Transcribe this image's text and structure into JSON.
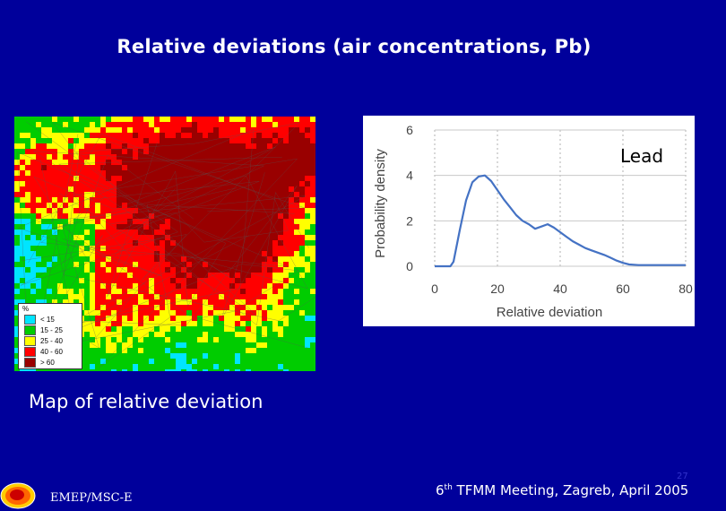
{
  "title": "Relative deviations (air concentrations, Pb)",
  "map": {
    "caption": "Map of relative deviation",
    "legend_title": "%",
    "legend": [
      {
        "label": "< 15",
        "color": "#00e5ff"
      },
      {
        "label": "15 - 25",
        "color": "#00cc00"
      },
      {
        "label": "25 - 40",
        "color": "#ffff00"
      },
      {
        "label": "40 - 60",
        "color": "#ff0000"
      },
      {
        "label": "> 60",
        "color": "#990000"
      }
    ]
  },
  "chart_data": {
    "type": "line",
    "annotation": "Lead",
    "xlabel": "Relative deviation",
    "ylabel": "Probability density",
    "xlim": [
      0,
      80
    ],
    "ylim": [
      0,
      6
    ],
    "xticks": [
      "0",
      "20",
      "40",
      "60",
      "80"
    ],
    "yticks": [
      "0",
      "2",
      "4",
      "6"
    ],
    "grid": "vertical dashed",
    "series": [
      {
        "color": "#4472c4",
        "x": [
          0,
          5,
          6,
          8,
          10,
          12,
          14,
          16,
          18,
          20,
          22,
          24,
          26,
          28,
          30,
          32,
          34,
          36,
          38,
          40,
          42,
          44,
          46,
          48,
          50,
          52,
          54,
          56,
          58,
          60,
          62,
          65,
          70,
          75,
          80
        ],
        "y": [
          0,
          0,
          0.2,
          1.6,
          2.9,
          3.7,
          3.95,
          4.0,
          3.75,
          3.35,
          2.95,
          2.6,
          2.25,
          2.0,
          1.85,
          1.65,
          1.75,
          1.85,
          1.7,
          1.5,
          1.3,
          1.1,
          0.95,
          0.8,
          0.7,
          0.6,
          0.5,
          0.38,
          0.25,
          0.15,
          0.08,
          0.05,
          0.05,
          0.05,
          0.05
        ]
      }
    ]
  },
  "footer": {
    "left": "EMEP/MSC-E",
    "right_sup": "th",
    "right_pre": "6",
    "right_post": " TFMM Meeting, Zagreb, April 2005",
    "page": "27"
  }
}
